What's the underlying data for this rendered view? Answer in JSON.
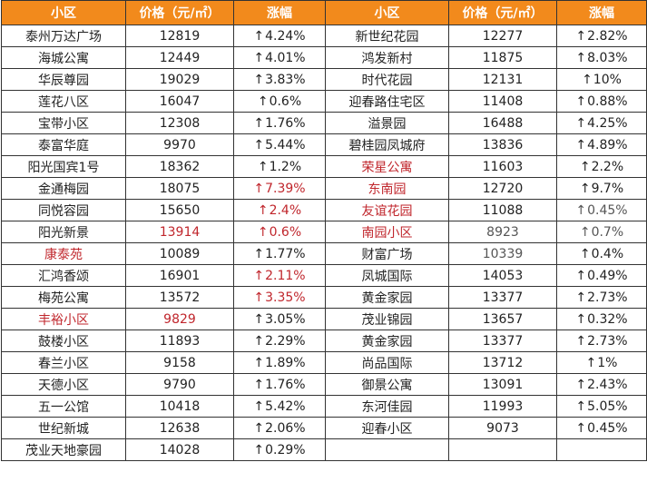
{
  "headers": [
    "小区",
    "价格（元/㎡）",
    "涨幅",
    "小区",
    "价格（元/㎡）",
    "涨幅"
  ],
  "arrow": "↑",
  "colors": {
    "header_bg": "#f28a1c",
    "header_text": "#ffffff",
    "border": "#333333",
    "highlight_red": "#c0262c"
  },
  "rows": [
    {
      "left": {
        "name": "泰州万达广场",
        "price": "12819",
        "rise": "4.24%"
      },
      "right": {
        "name": "新世纪花园",
        "price": "12277",
        "rise": "2.82%"
      }
    },
    {
      "left": {
        "name": "海城公寓",
        "price": "12449",
        "rise": "4.01%"
      },
      "right": {
        "name": "鸿发新村",
        "price": "11875",
        "rise": "8.03%"
      }
    },
    {
      "left": {
        "name": "华辰尊园",
        "price": "19029",
        "rise": "3.83%"
      },
      "right": {
        "name": "时代花园",
        "price": "12131",
        "rise": "10%"
      }
    },
    {
      "left": {
        "name": "莲花八区",
        "price": "16047",
        "rise": "0.6%"
      },
      "right": {
        "name": "迎春路住宅区",
        "price": "11408",
        "rise": "0.88%"
      }
    },
    {
      "left": {
        "name": "宝带小区",
        "price": "12308",
        "rise": "1.76%"
      },
      "right": {
        "name": "溢景园",
        "price": "16488",
        "rise": "4.25%"
      }
    },
    {
      "left": {
        "name": "泰富华庭",
        "price": "9970",
        "rise": "5.44%"
      },
      "right": {
        "name": "碧桂园凤城府",
        "price": "13836",
        "rise": "4.89%"
      }
    },
    {
      "left": {
        "name": "阳光国宾1号",
        "price": "18362",
        "rise": "1.2%"
      },
      "right": {
        "name": "荣星公寓",
        "price": "11603",
        "rise": "2.2%",
        "name_red": true
      }
    },
    {
      "left": {
        "name": "金通梅园",
        "price": "18075",
        "rise": "7.39%",
        "rise_red": true
      },
      "right": {
        "name": "东南园",
        "price": "12720",
        "rise": "9.7%",
        "name_red": true
      }
    },
    {
      "left": {
        "name": "同悦容园",
        "price": "15650",
        "rise": "2.4%",
        "rise_red": true
      },
      "right": {
        "name": "友谊花园",
        "price": "11088",
        "rise": "0.45%",
        "name_red": true,
        "rise_grey": true
      }
    },
    {
      "left": {
        "name": "阳光新景",
        "price": "13914",
        "rise": "0.6%",
        "price_red": true,
        "rise_red": true
      },
      "right": {
        "name": "南园小区",
        "price": "8923",
        "rise": "0.7%",
        "name_red": true,
        "price_grey": true,
        "rise_grey": true
      }
    },
    {
      "left": {
        "name": "康泰苑",
        "price": "10089",
        "rise": "1.77%",
        "name_red": true
      },
      "right": {
        "name": "财富广场",
        "price": "10339",
        "rise": "0.4%",
        "price_grey": true
      }
    },
    {
      "left": {
        "name": "汇鸿香颂",
        "price": "16901",
        "rise": "2.11%",
        "rise_red": true
      },
      "right": {
        "name": "凤城国际",
        "price": "14053",
        "rise": "0.49%"
      }
    },
    {
      "left": {
        "name": "梅苑公寓",
        "price": "13572",
        "rise": "3.35%",
        "rise_red": true
      },
      "right": {
        "name": "黄金家园",
        "price": "13377",
        "rise": "2.73%"
      }
    },
    {
      "left": {
        "name": "丰裕小区",
        "price": "9829",
        "rise": "3.05%",
        "name_red": true,
        "price_red": true
      },
      "right": {
        "name": "茂业锦园",
        "price": "13657",
        "rise": "0.32%"
      }
    },
    {
      "left": {
        "name": "鼓楼小区",
        "price": "11893",
        "rise": "2.29%"
      },
      "right": {
        "name": "黄金家园",
        "price": "13377",
        "rise": "2.73%"
      }
    },
    {
      "left": {
        "name": "春兰小区",
        "price": "9158",
        "rise": "1.89%"
      },
      "right": {
        "name": "尚品国际",
        "price": "13712",
        "rise": "1%"
      }
    },
    {
      "left": {
        "name": "天德小区",
        "price": "9790",
        "rise": "1.76%"
      },
      "right": {
        "name": "御景公寓",
        "price": "13091",
        "rise": "2.43%"
      }
    },
    {
      "left": {
        "name": "五一公馆",
        "price": "10418",
        "rise": "5.42%"
      },
      "right": {
        "name": "东河佳园",
        "price": "11993",
        "rise": "5.05%"
      }
    },
    {
      "left": {
        "name": "世纪新城",
        "price": "12638",
        "rise": "2.06%"
      },
      "right": {
        "name": "迎春小区",
        "price": "9073",
        "rise": "0.45%"
      }
    },
    {
      "left": {
        "name": "茂业天地豪园",
        "price": "14028",
        "rise": "0.29%"
      },
      "right": null
    }
  ]
}
